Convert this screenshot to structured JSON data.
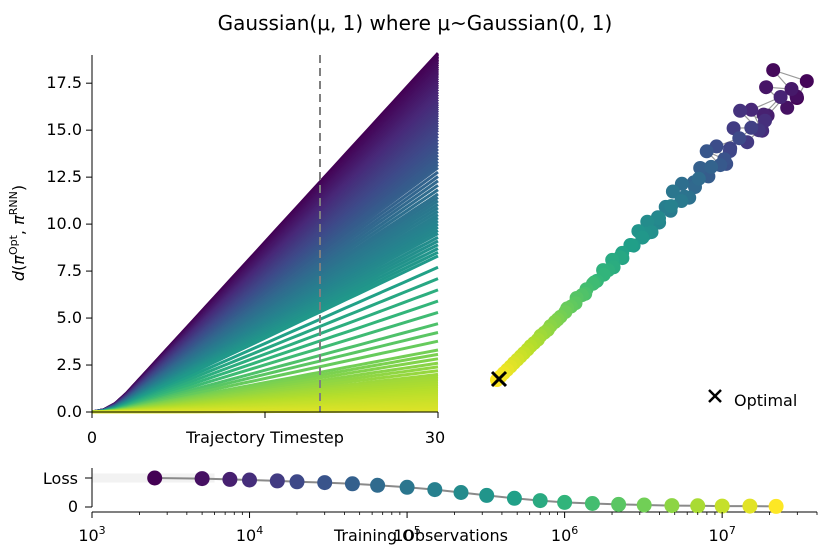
{
  "figure": {
    "title": "Gaussian(μ, 1) where μ~Gaussian(0, 1)"
  },
  "chart_data": [
    {
      "type": "line",
      "panel": "distance-vs-timestep",
      "xlabel": "Trajectory Timestep",
      "ylabel": "d(π^Opt, π^RNN)",
      "xlim": [
        0,
        30
      ],
      "ylim": [
        0,
        19
      ],
      "xticks": [
        0,
        30
      ],
      "yticks": [
        "0.0",
        "2.5",
        "5.0",
        "7.5",
        "10.0",
        "12.5",
        "15.0",
        "17.5"
      ],
      "vline": {
        "x": 27,
        "style": "dashed",
        "color": "#7f7f7f"
      },
      "series_final_values": [
        19.1,
        18.6,
        18.0,
        17.3,
        16.5,
        15.8,
        15.0,
        14.0,
        13.0,
        11.6,
        10.5,
        9.5,
        8.3,
        6.5,
        4.7,
        3.3,
        2.6,
        2.0,
        1.6,
        1.2,
        0.9,
        0.6,
        0.4,
        0.2,
        0.1,
        0.05
      ],
      "colormap": [
        "#440154",
        "#482878",
        "#3e4989",
        "#31688e",
        "#26828e",
        "#1f9e89",
        "#35b779",
        "#6ece58",
        "#b5de2b",
        "#fde725"
      ]
    },
    {
      "type": "scatter",
      "panel": "embedding",
      "legend": [
        {
          "marker": "x",
          "label": "Optimal"
        }
      ],
      "optimal_marker": "x",
      "color_encoding": "training progress (viridis, purple=early, yellow=late)"
    },
    {
      "type": "scatter",
      "panel": "loss-vs-training",
      "xlabel": "Training Observations",
      "xscale": "log",
      "xlim": [
        1000,
        40000000
      ],
      "xticks": [
        1000,
        10000,
        100000,
        1000000,
        10000000
      ],
      "xtick_labels": [
        "10^3",
        "10^4",
        "10^5",
        "10^6",
        "10^7"
      ],
      "yticks": [
        "0",
        "Loss"
      ],
      "x": [
        2500,
        5000,
        7500,
        10000,
        15000,
        20000,
        30000,
        45000,
        65000,
        100000,
        150000,
        220000,
        320000,
        480000,
        700000,
        1000000,
        1500000,
        2200000,
        3200000,
        4800000,
        7000000,
        10000000,
        15000000,
        22000000
      ],
      "loss": [
        1.0,
        0.98,
        0.95,
        0.93,
        0.9,
        0.87,
        0.84,
        0.8,
        0.75,
        0.68,
        0.6,
        0.5,
        0.4,
        0.3,
        0.22,
        0.16,
        0.12,
        0.09,
        0.07,
        0.05,
        0.04,
        0.03,
        0.03,
        0.02
      ]
    }
  ]
}
